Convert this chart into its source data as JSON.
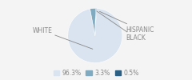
{
  "labels": [
    "WHITE",
    "HISPANIC",
    "BLACK"
  ],
  "values": [
    96.3,
    3.3,
    0.5
  ],
  "colors": [
    "#d9e4f0",
    "#7faabf",
    "#2d5f82"
  ],
  "legend_labels": [
    "96.3%",
    "3.3%",
    "0.5%"
  ],
  "background_color": "#f4f4f4",
  "text_color": "#888888",
  "fontsize": 5.5,
  "startangle": 87
}
